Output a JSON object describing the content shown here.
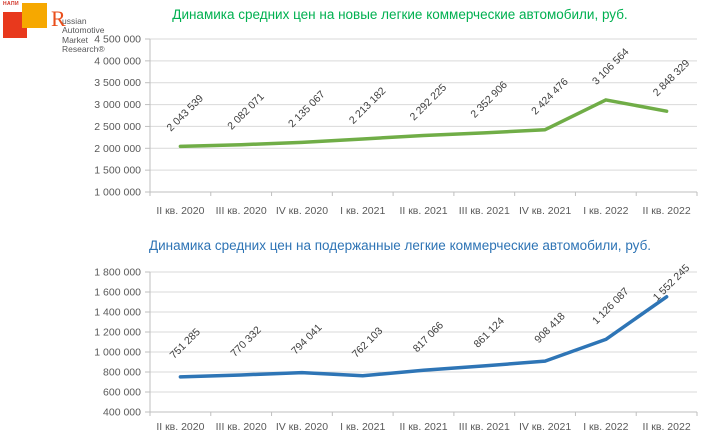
{
  "logo": {
    "napi": "НАПИ",
    "brand": {
      "initial": "R",
      "line1_rest": "ussian",
      "line2": "Automotive",
      "line3": "Market",
      "line4": "Research®"
    },
    "colors": {
      "red_square": "#E8391D",
      "orange_square": "#F6A800",
      "initial": "#E94E1B",
      "brand_text": "#58585A"
    }
  },
  "axis_style": {
    "grid_color": "#D9D9D9",
    "axis_color": "#BFBFBF",
    "tick_color": "#595959",
    "point_label_color": "#3F3F3F"
  },
  "chart_data": [
    {
      "type": "line",
      "title": "Динамика средних цен на новые легкие коммерческие автомобили, руб.",
      "title_color": "#00B050",
      "line_color": "#70AD47",
      "legend": "none",
      "grid": true,
      "categories": [
        "II кв. 2020",
        "III кв. 2020",
        "IV кв. 2020",
        "I кв. 2021",
        "II кв. 2021",
        "III кв. 2021",
        "IV кв. 2021",
        "I кв. 2022",
        "II кв. 2022"
      ],
      "values": [
        2043539,
        2082071,
        2135067,
        2213182,
        2292225,
        2352906,
        2424476,
        3106564,
        2848329
      ],
      "point_labels": [
        "2 043 539",
        "2 082 071",
        "2 135 067",
        "2 213 182",
        "2 292 225",
        "2 352 906",
        "2 424 476",
        "3 106 564",
        "2 848 329"
      ],
      "ylim": [
        1000000,
        4500000
      ],
      "ytick_step": 500000,
      "ytick_labels": [
        "4 500 000",
        "4 000 000",
        "3 500 000",
        "3 000 000",
        "2 500 000",
        "2 000 000",
        "1 500 000",
        "1 000 000"
      ]
    },
    {
      "type": "line",
      "title": "Динамика средних цен на подержанные легкие коммерческие автомобили, руб.",
      "title_color": "#2E74B5",
      "line_color": "#2E75B6",
      "legend": "none",
      "grid": true,
      "categories": [
        "II кв. 2020",
        "III кв. 2020",
        "IV кв. 2020",
        "I кв. 2021",
        "II кв. 2021",
        "III кв. 2021",
        "IV кв. 2021",
        "I кв. 2022",
        "II кв. 2022"
      ],
      "values": [
        751285,
        770332,
        794041,
        762103,
        817066,
        861124,
        908418,
        1126087,
        1552245
      ],
      "point_labels": [
        "751 285",
        "770 332",
        "794 041",
        "762 103",
        "817 066",
        "861 124",
        "908 418",
        "1 126 087",
        "1 552 245"
      ],
      "ylim": [
        400000,
        1800000
      ],
      "ytick_step": 200000,
      "ytick_labels": [
        "1 800 000",
        "1 600 000",
        "1 400 000",
        "1 200 000",
        "1 000 000",
        "800 000",
        "600 000",
        "400 000"
      ]
    }
  ]
}
